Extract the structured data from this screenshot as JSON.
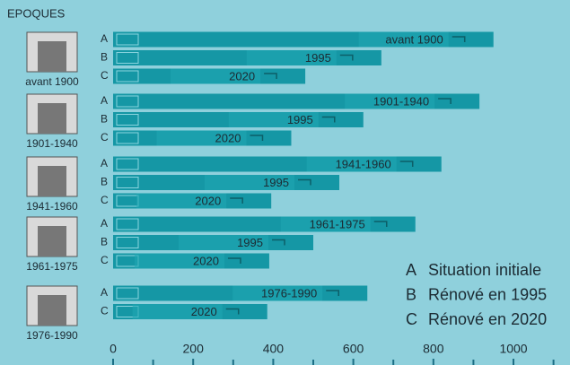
{
  "chart_data": {
    "type": "bar",
    "orientation": "horizontal",
    "title": "EPOQUES",
    "categories": [
      "avant 1900",
      "1901-1940",
      "1941-1960",
      "1961-1975",
      "1976-1990"
    ],
    "series": [
      {
        "name": "Situation initiale",
        "letter": "A",
        "color": "#1597a5",
        "values": [
          950,
          915,
          820,
          755,
          635
        ]
      },
      {
        "name": "Rénové en 1995",
        "letter": "B",
        "bar_label": "1995",
        "color": "#1597a5",
        "values": [
          670,
          625,
          565,
          500,
          null
        ]
      },
      {
        "name": "Rénové en 2020",
        "letter": "C",
        "bar_label": "2020",
        "color": "#1597a5",
        "values": [
          480,
          445,
          395,
          390,
          385
        ]
      }
    ],
    "xlim": [
      0,
      1130
    ],
    "xticks": [
      0,
      200,
      400,
      600,
      800,
      1000
    ],
    "minor_xticks": [
      100,
      300,
      500,
      700,
      900,
      1100
    ],
    "legend": "bottom-right"
  }
}
